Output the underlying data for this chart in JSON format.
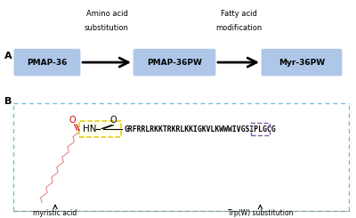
{
  "panel_A_label": "A",
  "panel_B_label": "B",
  "box1_text": "PMAP-36",
  "box2_text": "PMAP-36PW",
  "box3_text": "Myr-36PW",
  "arrow1_label_line1": "Amino acid",
  "arrow1_label_line2": "substitution",
  "arrow2_label_line1": "Fatty acid",
  "arrow2_label_line2": "modification",
  "box_color": "#aec6e8",
  "peptide_sequence": "GRFRRLRKKTRKRLKKIGKVLKWWWIVGSIPLGCG",
  "myristic_label": "myristic acid",
  "trp_label": "Trp(W) substitution",
  "border_color": "#6bbdd4",
  "chain_color": "#e09090",
  "yellow_box_color": "#e8c800",
  "purple_box_color": "#7b5ea7",
  "carbonyl_color": "#cc0000"
}
